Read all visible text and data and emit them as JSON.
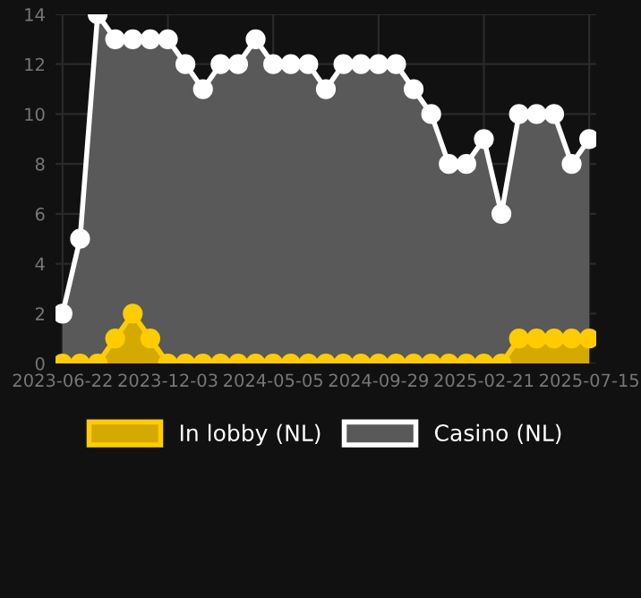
{
  "chart_data": {
    "type": "area",
    "categories": [
      "2023-06-22",
      null,
      null,
      null,
      null,
      null,
      "2023-12-03",
      null,
      null,
      null,
      null,
      null,
      "2024-05-05",
      null,
      null,
      null,
      null,
      null,
      "2024-09-29",
      null,
      null,
      null,
      null,
      null,
      "2025-02-21",
      null,
      null,
      null,
      null,
      null,
      "2025-07-15"
    ],
    "series": [
      {
        "name": "In lobby (NL)",
        "color": "#ffcc00",
        "values": [
          0,
          0,
          0,
          1,
          2,
          1,
          0,
          0,
          0,
          0,
          0,
          0,
          0,
          0,
          0,
          0,
          0,
          0,
          0,
          0,
          0,
          0,
          0,
          0,
          0,
          0,
          1,
          1,
          1,
          1,
          1
        ]
      },
      {
        "name": "Casino (NL)",
        "color": "#ffffff",
        "values": [
          2,
          5,
          14,
          13,
          13,
          13,
          13,
          12,
          11,
          12,
          12,
          13,
          12,
          12,
          12,
          11,
          12,
          12,
          12,
          12,
          11,
          10,
          8,
          8,
          9,
          6,
          10,
          10,
          10,
          8,
          9
        ]
      }
    ],
    "ylim": [
      0,
      14
    ],
    "yticks": [
      0,
      2,
      4,
      6,
      8,
      10,
      12,
      14
    ],
    "grid": true,
    "legend": "bottom",
    "marker": "circle",
    "line_style": "solid"
  }
}
